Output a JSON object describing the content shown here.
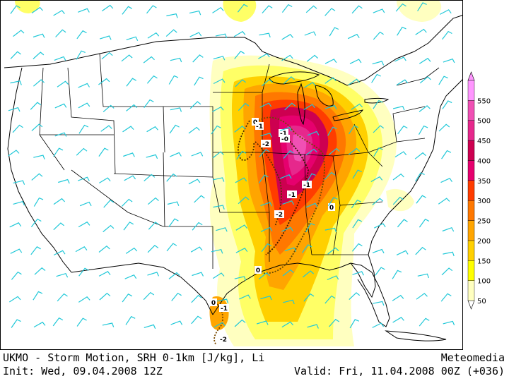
{
  "footer": {
    "title": "UKMO - Storm Motion, SRH 0-1km [J/kg], Li",
    "brand": "Meteomedia",
    "init": "Init: Wed, 09.04.2008 12Z",
    "valid": "Valid: Fri, 11.04.2008 00Z (+036)"
  },
  "legend": {
    "levels": [
      "50",
      "100",
      "150",
      "200",
      "250",
      "300",
      "350",
      "400",
      "450",
      "500",
      "550"
    ],
    "colors": [
      "#ffffc0",
      "#ffff00",
      "#ffd000",
      "#ffa500",
      "#ff7800",
      "#ff3c00",
      "#e6006e",
      "#cd0050",
      "#e6288c",
      "#f050b4",
      "#ff96ff"
    ]
  },
  "li_labels": [
    "0",
    "-1",
    "-2",
    "-1",
    "-0",
    "-1",
    "-1",
    "-2",
    "0",
    "0",
    "0",
    "-1",
    "-2"
  ],
  "icons": {
    "storm_motion": "wind-barb-icon"
  }
}
